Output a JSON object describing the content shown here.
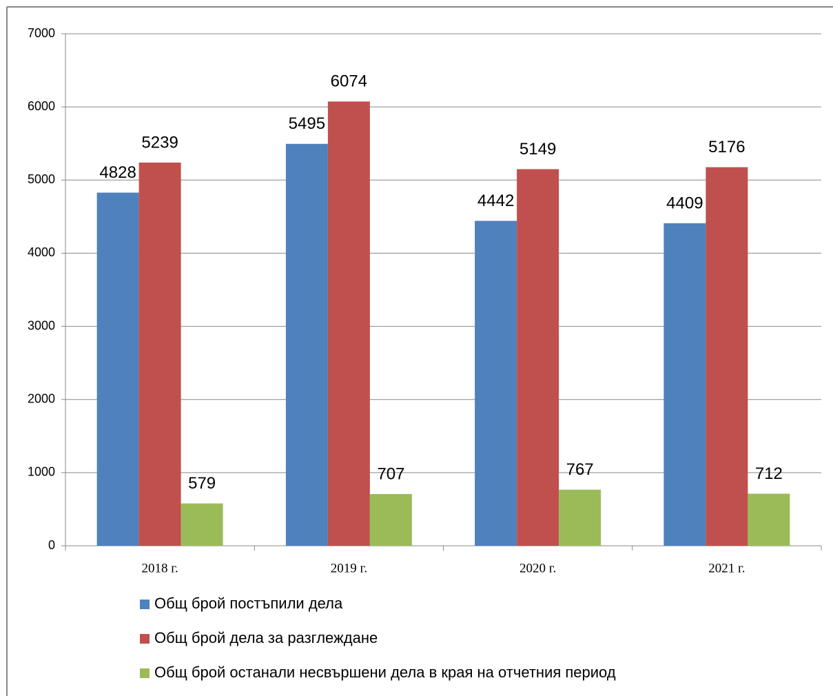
{
  "chart_data": {
    "type": "bar",
    "categories": [
      "2018 г.",
      "2019 г.",
      "2020 г.",
      "2021 г."
    ],
    "series": [
      {
        "name": "Общ брой постъпили дела",
        "color": "#4f81bd",
        "values": [
          4828,
          5495,
          4442,
          4409
        ]
      },
      {
        "name": "Общ брой дела за разглеждане",
        "color": "#c0504d",
        "values": [
          5239,
          6074,
          5149,
          5176
        ]
      },
      {
        "name": "Общ брой останали несвършени дела в края на отчетния период",
        "color": "#9bbb59",
        "values": [
          579,
          707,
          767,
          712
        ]
      }
    ],
    "ylim": [
      0,
      7000
    ],
    "yticks": [
      0,
      1000,
      2000,
      3000,
      4000,
      5000,
      6000,
      7000
    ],
    "grid": true,
    "legend": "bottom"
  }
}
